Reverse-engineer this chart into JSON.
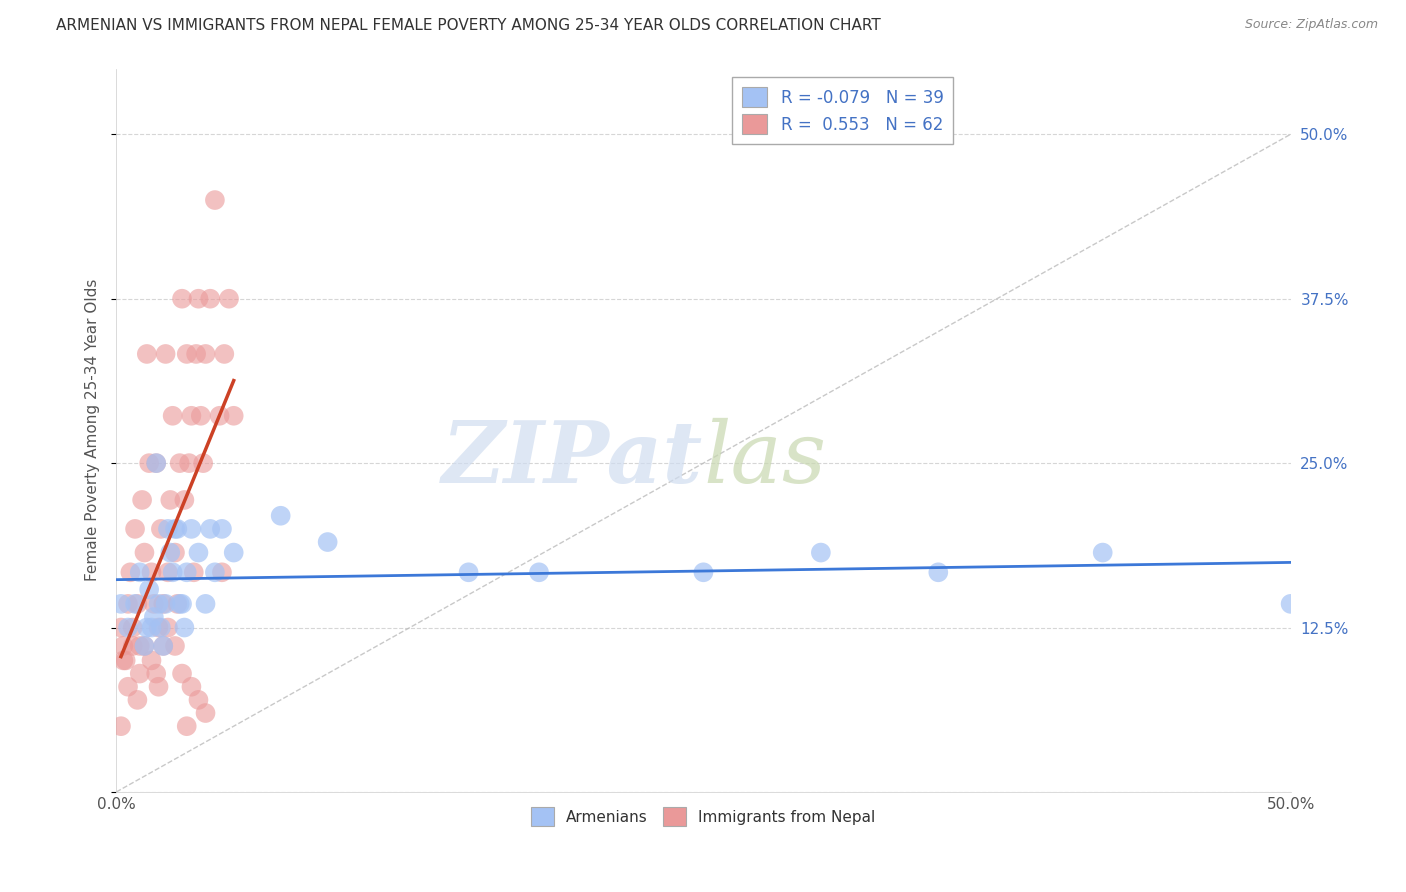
{
  "title": "ARMENIAN VS IMMIGRANTS FROM NEPAL FEMALE POVERTY AMONG 25-34 YEAR OLDS CORRELATION CHART",
  "source": "Source: ZipAtlas.com",
  "ylabel": "Female Poverty Among 25-34 Year Olds",
  "xlim": [
    0.0,
    0.5
  ],
  "ylim": [
    0.0,
    0.55
  ],
  "watermark_zip": "ZIP",
  "watermark_atlas": "atlas",
  "legend_R_armenian": "-0.079",
  "legend_N_armenian": "39",
  "legend_R_nepal": "0.553",
  "legend_N_nepal": "62",
  "armenian_color": "#a4c2f4",
  "nepal_color": "#ea9999",
  "armenian_line_color": "#3c78d8",
  "nepal_line_color": "#cc4125",
  "diagonal_color": "#cccccc",
  "background_color": "#ffffff",
  "grid_color": "#cccccc",
  "armenian_points": [
    [
      0.002,
      0.143
    ],
    [
      0.005,
      0.125
    ],
    [
      0.008,
      0.143
    ],
    [
      0.01,
      0.167
    ],
    [
      0.012,
      0.111
    ],
    [
      0.013,
      0.125
    ],
    [
      0.014,
      0.154
    ],
    [
      0.015,
      0.125
    ],
    [
      0.016,
      0.133
    ],
    [
      0.017,
      0.25
    ],
    [
      0.018,
      0.143
    ],
    [
      0.019,
      0.125
    ],
    [
      0.02,
      0.111
    ],
    [
      0.021,
      0.143
    ],
    [
      0.022,
      0.2
    ],
    [
      0.023,
      0.182
    ],
    [
      0.024,
      0.167
    ],
    [
      0.025,
      0.2
    ],
    [
      0.026,
      0.2
    ],
    [
      0.027,
      0.143
    ],
    [
      0.028,
      0.143
    ],
    [
      0.029,
      0.125
    ],
    [
      0.03,
      0.167
    ],
    [
      0.032,
      0.2
    ],
    [
      0.035,
      0.182
    ],
    [
      0.038,
      0.143
    ],
    [
      0.04,
      0.2
    ],
    [
      0.042,
      0.167
    ],
    [
      0.045,
      0.2
    ],
    [
      0.05,
      0.182
    ],
    [
      0.07,
      0.21
    ],
    [
      0.09,
      0.19
    ],
    [
      0.15,
      0.167
    ],
    [
      0.18,
      0.167
    ],
    [
      0.25,
      0.167
    ],
    [
      0.3,
      0.182
    ],
    [
      0.35,
      0.167
    ],
    [
      0.42,
      0.182
    ],
    [
      0.5,
      0.143
    ]
  ],
  "nepal_points": [
    [
      0.002,
      0.125
    ],
    [
      0.003,
      0.111
    ],
    [
      0.004,
      0.1
    ],
    [
      0.005,
      0.143
    ],
    [
      0.006,
      0.167
    ],
    [
      0.007,
      0.125
    ],
    [
      0.008,
      0.2
    ],
    [
      0.009,
      0.143
    ],
    [
      0.01,
      0.111
    ],
    [
      0.011,
      0.222
    ],
    [
      0.012,
      0.182
    ],
    [
      0.013,
      0.333
    ],
    [
      0.014,
      0.25
    ],
    [
      0.015,
      0.167
    ],
    [
      0.016,
      0.143
    ],
    [
      0.017,
      0.25
    ],
    [
      0.018,
      0.125
    ],
    [
      0.019,
      0.2
    ],
    [
      0.02,
      0.143
    ],
    [
      0.021,
      0.333
    ],
    [
      0.022,
      0.167
    ],
    [
      0.023,
      0.222
    ],
    [
      0.024,
      0.286
    ],
    [
      0.025,
      0.182
    ],
    [
      0.026,
      0.143
    ],
    [
      0.027,
      0.25
    ],
    [
      0.028,
      0.375
    ],
    [
      0.029,
      0.222
    ],
    [
      0.03,
      0.333
    ],
    [
      0.031,
      0.25
    ],
    [
      0.032,
      0.286
    ],
    [
      0.033,
      0.167
    ],
    [
      0.034,
      0.333
    ],
    [
      0.035,
      0.375
    ],
    [
      0.036,
      0.286
    ],
    [
      0.037,
      0.25
    ],
    [
      0.038,
      0.333
    ],
    [
      0.04,
      0.375
    ],
    [
      0.042,
      0.45
    ],
    [
      0.044,
      0.286
    ],
    [
      0.045,
      0.167
    ],
    [
      0.046,
      0.333
    ],
    [
      0.048,
      0.375
    ],
    [
      0.05,
      0.286
    ],
    [
      0.002,
      0.05
    ],
    [
      0.003,
      0.1
    ],
    [
      0.005,
      0.08
    ],
    [
      0.007,
      0.111
    ],
    [
      0.009,
      0.07
    ],
    [
      0.01,
      0.09
    ],
    [
      0.012,
      0.111
    ],
    [
      0.015,
      0.1
    ],
    [
      0.017,
      0.09
    ],
    [
      0.018,
      0.08
    ],
    [
      0.02,
      0.111
    ],
    [
      0.022,
      0.125
    ],
    [
      0.025,
      0.111
    ],
    [
      0.028,
      0.09
    ],
    [
      0.03,
      0.05
    ],
    [
      0.032,
      0.08
    ],
    [
      0.035,
      0.07
    ],
    [
      0.038,
      0.06
    ]
  ]
}
